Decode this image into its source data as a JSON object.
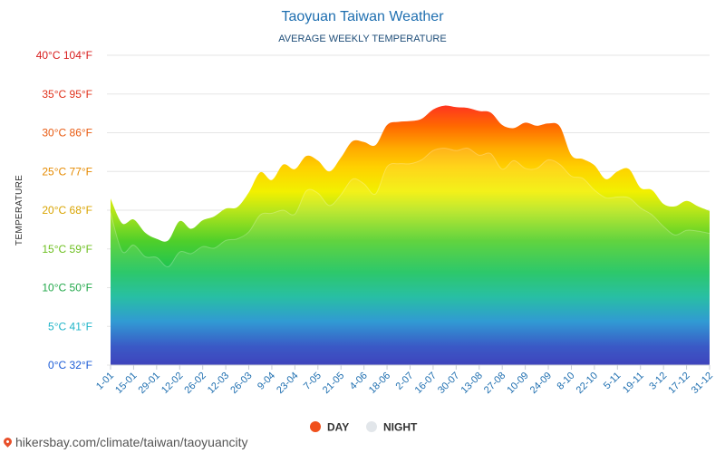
{
  "colors": {
    "title": "#1f6fb0",
    "day_legend": "#f0501c",
    "night_legend": "#e2e6ea",
    "grid": "#e6e6e6"
  },
  "watermark": "hikersbay.com/climate/taiwan/taoyuancity",
  "chart_data": {
    "type": "area",
    "title": "Taoyuan Taiwan Weather",
    "subtitle": "AVERAGE WEEKLY TEMPERATURE",
    "ylabel": "TEMPERATURE",
    "xlabel": "",
    "ylim": [
      0,
      40
    ],
    "grid": true,
    "legend_position": "bottom",
    "y_ticks": [
      {
        "value": 0,
        "label": "0°C 32°F",
        "color": "#1a5bd6"
      },
      {
        "value": 5,
        "label": "5°C 41°F",
        "color": "#1fb4c8"
      },
      {
        "value": 10,
        "label": "10°C 50°F",
        "color": "#22a84a"
      },
      {
        "value": 15,
        "label": "15°C 59°F",
        "color": "#6cbf1e"
      },
      {
        "value": 20,
        "label": "20°C 68°F",
        "color": "#d9a400"
      },
      {
        "value": 25,
        "label": "25°C 77°F",
        "color": "#e58a00"
      },
      {
        "value": 30,
        "label": "30°C 86°F",
        "color": "#e85a10"
      },
      {
        "value": 35,
        "label": "35°C 95°F",
        "color": "#e0301a"
      },
      {
        "value": 40,
        "label": "40°C 104°F",
        "color": "#d81c1c"
      }
    ],
    "x_tick_labels": [
      "1-01",
      "15-01",
      "29-01",
      "12-02",
      "26-02",
      "12-03",
      "26-03",
      "9-04",
      "23-04",
      "7-05",
      "21-05",
      "4-06",
      "18-06",
      "2-07",
      "16-07",
      "30-07",
      "13-08",
      "27-08",
      "10-09",
      "24-09",
      "8-10",
      "22-10",
      "5-11",
      "19-11",
      "3-12",
      "17-12",
      "31-12"
    ],
    "series": [
      {
        "name": "DAY",
        "values": [
          21.5,
          18.3,
          18.8,
          17.1,
          16.3,
          16.1,
          18.6,
          17.6,
          18.7,
          19.2,
          20.2,
          20.4,
          22.3,
          24.9,
          23.9,
          25.9,
          25.3,
          27.0,
          26.4,
          25.0,
          26.8,
          28.9,
          28.8,
          28.4,
          31.0,
          31.4,
          31.5,
          31.8,
          33.0,
          33.5,
          33.3,
          33.2,
          32.8,
          32.6,
          31.0,
          30.6,
          31.3,
          30.9,
          31.2,
          30.8,
          27.1,
          26.6,
          25.8,
          24.0,
          25.0,
          25.3,
          22.9,
          22.6,
          20.8,
          20.5,
          21.2,
          20.5,
          19.9
        ]
      },
      {
        "name": "NIGHT",
        "values": [
          19.7,
          14.7,
          15.5,
          14.0,
          13.9,
          12.7,
          14.6,
          14.4,
          15.3,
          15.1,
          16.1,
          16.3,
          17.2,
          19.4,
          19.6,
          20.0,
          19.5,
          22.5,
          22.2,
          20.6,
          22.0,
          24.0,
          23.4,
          22.1,
          25.6,
          26.0,
          26.0,
          26.5,
          27.7,
          28.0,
          27.7,
          28.0,
          27.1,
          27.3,
          25.3,
          26.4,
          25.4,
          25.4,
          26.5,
          25.9,
          24.4,
          24.1,
          22.6,
          21.6,
          21.7,
          21.6,
          20.3,
          19.4,
          17.9,
          16.8,
          17.4,
          17.3,
          17.0
        ]
      }
    ]
  }
}
